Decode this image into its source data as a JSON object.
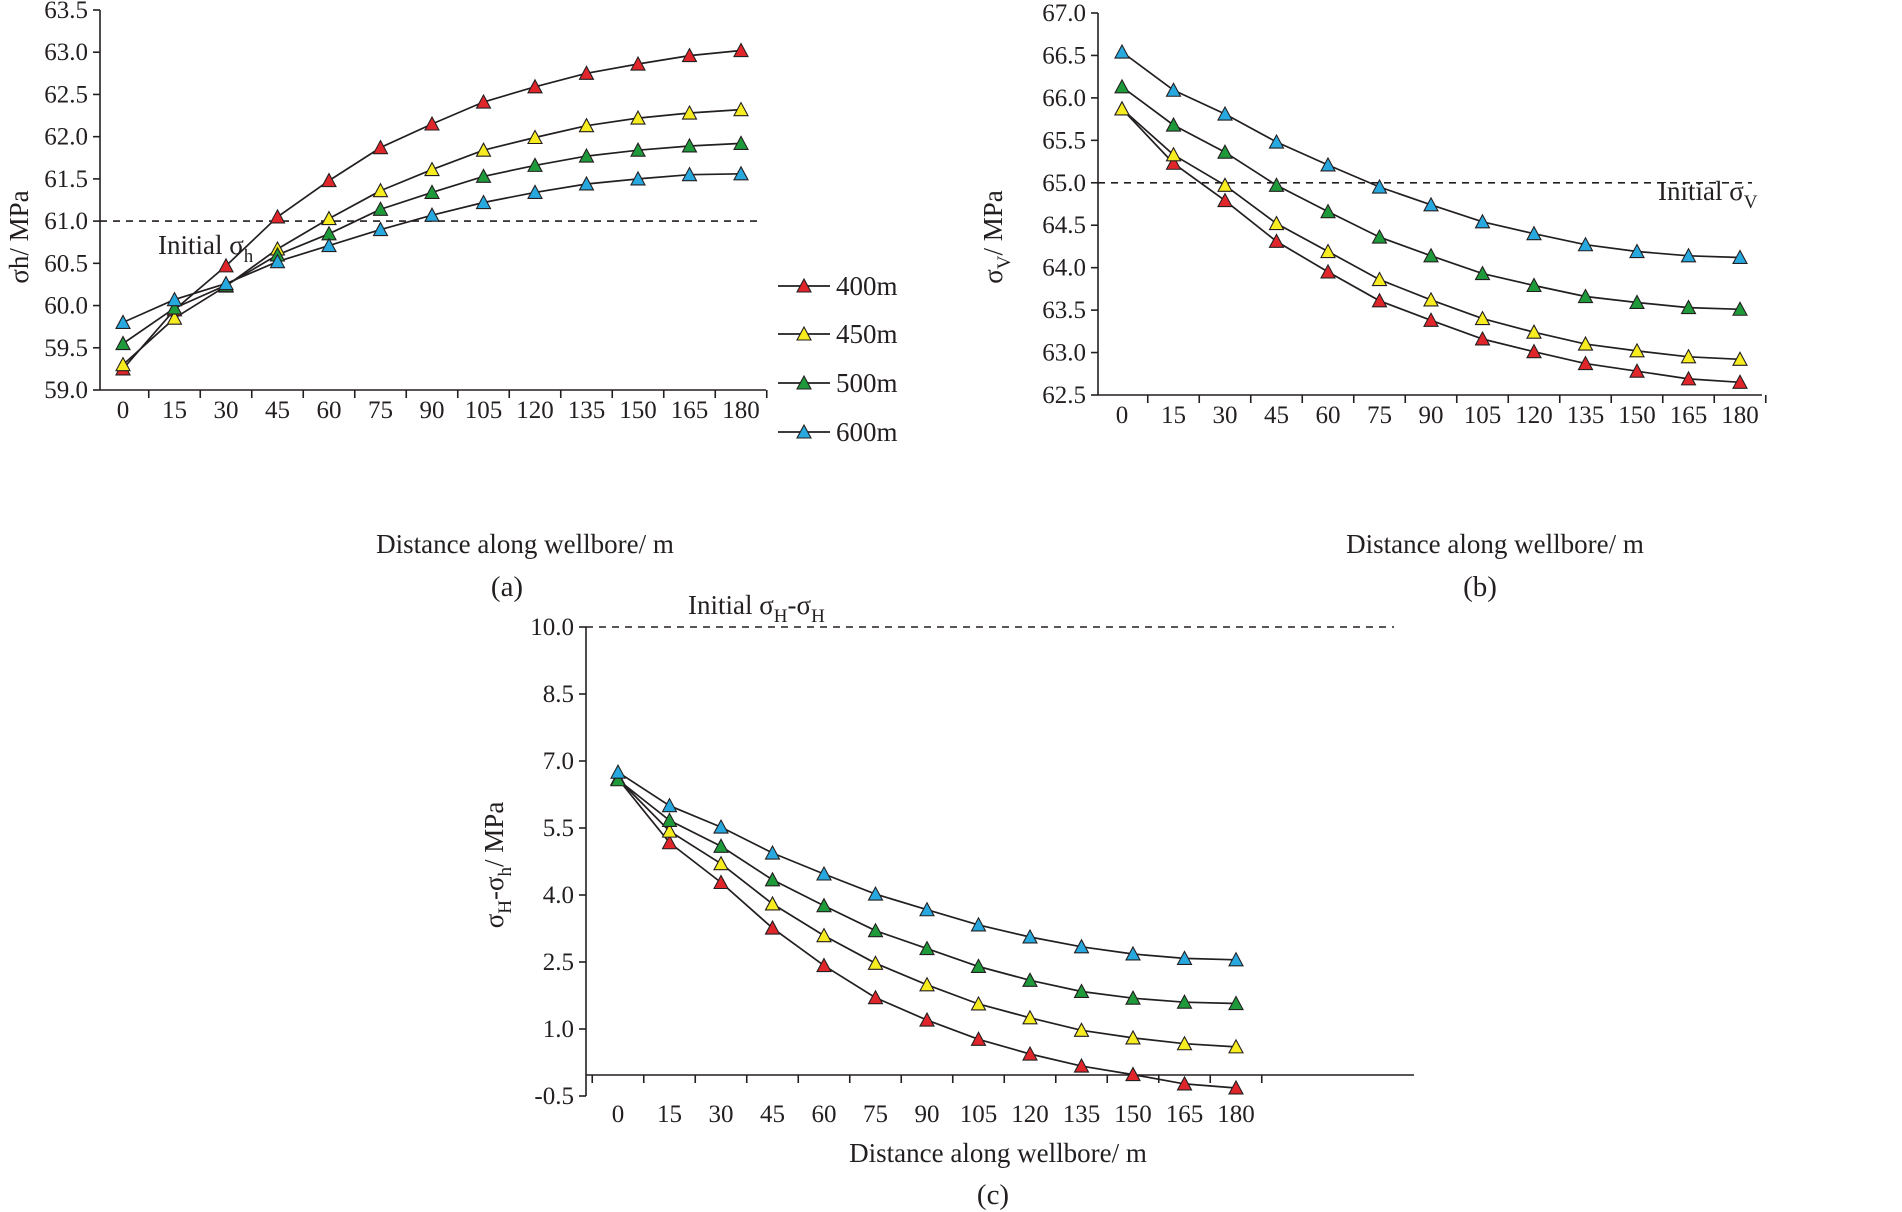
{
  "colors": {
    "axis": "#231f20",
    "400m": "#e1262b",
    "450m": "#f7ec1f",
    "500m": "#1f9a3b",
    "600m": "#27a9e0"
  },
  "chart_data": [
    {
      "id": "a",
      "type": "line",
      "panel_label": "(a)",
      "xlabel": "Distance along wellbore/ m",
      "ylabel": "σh/ MPa",
      "ylim": [
        59.0,
        63.5
      ],
      "yticks": [
        "59.0",
        "59.5",
        "60.0",
        "60.5",
        "61.0",
        "61.5",
        "62.0",
        "62.5",
        "63.0",
        "63.5"
      ],
      "categories": [
        "0",
        "15",
        "30",
        "45",
        "60",
        "75",
        "90",
        "105",
        "120",
        "135",
        "150",
        "165",
        "180"
      ],
      "x": [
        0,
        15,
        30,
        45,
        60,
        75,
        90,
        105,
        120,
        135,
        150,
        165,
        180
      ],
      "reference": {
        "value": 61.0,
        "label_main": "Initial σ",
        "label_sub": "h"
      },
      "legend": {
        "position": "right",
        "entries": [
          "400m",
          "450m",
          "500m",
          "600m"
        ]
      },
      "series": [
        {
          "name": "400m",
          "values": [
            59.25,
            59.95,
            60.47,
            61.05,
            61.48,
            61.87,
            62.15,
            62.41,
            62.59,
            62.75,
            62.86,
            62.96,
            63.02
          ]
        },
        {
          "name": "450m",
          "values": [
            59.3,
            59.85,
            60.23,
            60.67,
            61.03,
            61.36,
            61.61,
            61.84,
            61.99,
            62.13,
            62.22,
            62.28,
            62.32
          ]
        },
        {
          "name": "500m",
          "values": [
            59.55,
            59.97,
            60.24,
            60.6,
            60.85,
            61.14,
            61.34,
            61.53,
            61.66,
            61.77,
            61.84,
            61.89,
            61.92
          ]
        },
        {
          "name": "600m",
          "values": [
            59.8,
            60.07,
            60.26,
            60.52,
            60.71,
            60.9,
            61.07,
            61.22,
            61.34,
            61.44,
            61.5,
            61.55,
            61.56
          ]
        }
      ]
    },
    {
      "id": "b",
      "type": "line",
      "panel_label": "(b)",
      "xlabel": "Distance along wellbore/ m",
      "ylabel_main": "σ",
      "ylabel_sub": "V",
      "ylabel_rest": "/ MPa",
      "ylim": [
        62.5,
        67.0
      ],
      "yticks": [
        "62.5",
        "63.0",
        "63.5",
        "64.0",
        "64.5",
        "65.0",
        "65.5",
        "66.0",
        "66.5",
        "67.0"
      ],
      "categories": [
        "0",
        "15",
        "30",
        "45",
        "60",
        "75",
        "90",
        "105",
        "120",
        "135",
        "150",
        "165",
        "180"
      ],
      "x": [
        0,
        15,
        30,
        45,
        60,
        75,
        90,
        105,
        120,
        135,
        150,
        165,
        180
      ],
      "reference": {
        "value": 65.0,
        "label_main": "Initial σ",
        "label_sub": "V"
      },
      "series": [
        {
          "name": "400m",
          "values": [
            65.87,
            65.23,
            64.79,
            64.31,
            63.95,
            63.61,
            63.38,
            63.16,
            63.01,
            62.87,
            62.78,
            62.69,
            62.65
          ]
        },
        {
          "name": "450m",
          "values": [
            65.87,
            65.33,
            64.97,
            64.52,
            64.19,
            63.86,
            63.62,
            63.4,
            63.24,
            63.1,
            63.02,
            62.95,
            62.92
          ]
        },
        {
          "name": "500m",
          "values": [
            66.13,
            65.68,
            65.36,
            64.97,
            64.66,
            64.36,
            64.14,
            63.93,
            63.79,
            63.66,
            63.59,
            63.53,
            63.51
          ]
        },
        {
          "name": "600m",
          "values": [
            66.54,
            66.09,
            65.81,
            65.48,
            65.21,
            64.95,
            64.74,
            64.54,
            64.4,
            64.27,
            64.19,
            64.14,
            64.12
          ]
        }
      ]
    },
    {
      "id": "c",
      "type": "line",
      "panel_label": "(c)",
      "xlabel": "Distance along wellbore/ m",
      "ylabel_parts": [
        "σ",
        "H",
        "-σ",
        "h",
        "/ MPa"
      ],
      "ylim": [
        -0.5,
        10.0
      ],
      "yticks": [
        "-0.5",
        "1.0",
        "2.5",
        "4.0",
        "5.5",
        "7.0",
        "8.5",
        "10.0"
      ],
      "categories": [
        "0",
        "15",
        "30",
        "45",
        "60",
        "75",
        "90",
        "105",
        "120",
        "135",
        "150",
        "165",
        "180"
      ],
      "x": [
        0,
        15,
        30,
        45,
        60,
        75,
        90,
        105,
        120,
        135,
        150,
        165,
        180
      ],
      "reference": {
        "value": 10.0,
        "label_main": "Initial σ",
        "label_sub": "H",
        "label_mid": "-σ",
        "label_sub2": "H"
      },
      "series": [
        {
          "name": "400m",
          "values": [
            6.6,
            5.17,
            4.28,
            3.26,
            2.42,
            1.7,
            1.2,
            0.77,
            0.44,
            0.17,
            -0.02,
            -0.23,
            -0.32
          ]
        },
        {
          "name": "450m",
          "values": [
            6.6,
            5.43,
            4.7,
            3.8,
            3.09,
            2.47,
            1.99,
            1.56,
            1.25,
            0.97,
            0.8,
            0.67,
            0.6
          ]
        },
        {
          "name": "500m",
          "values": [
            6.58,
            5.67,
            5.09,
            4.34,
            3.76,
            3.2,
            2.8,
            2.4,
            2.09,
            1.84,
            1.69,
            1.6,
            1.57
          ]
        },
        {
          "name": "600m",
          "values": [
            6.75,
            6.0,
            5.52,
            4.94,
            4.47,
            4.02,
            3.67,
            3.33,
            3.06,
            2.84,
            2.68,
            2.58,
            2.55
          ]
        }
      ]
    }
  ]
}
